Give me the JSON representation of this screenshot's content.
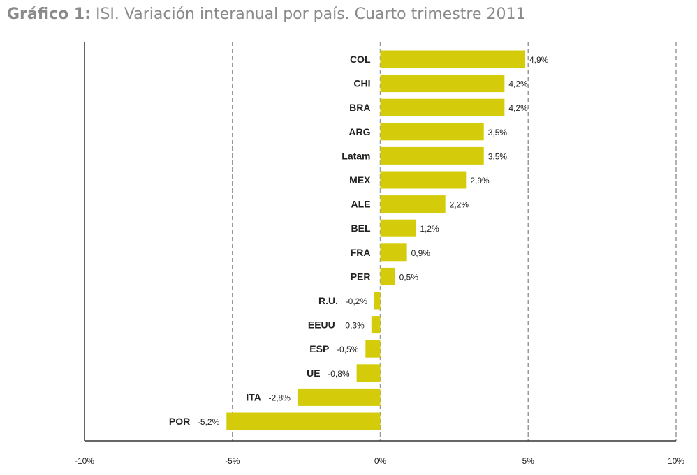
{
  "title": {
    "prefix": "Gráfico 1:",
    "text": " ISI. Variación interanual por país. Cuarto trimestre 2011"
  },
  "colors": {
    "bar": "#d4cc0a",
    "axis": "#333333",
    "grid": "#999999"
  },
  "chart_data": {
    "type": "bar",
    "orientation": "horizontal",
    "categories": [
      "COL",
      "CHI",
      "BRA",
      "ARG",
      "Latam",
      "MEX",
      "ALE",
      "BEL",
      "FRA",
      "PER",
      "R.U.",
      "EEUU",
      "ESP",
      "UE",
      "ITA",
      "POR"
    ],
    "values": [
      4.9,
      4.2,
      4.2,
      3.5,
      3.5,
      2.9,
      2.2,
      1.2,
      0.9,
      0.5,
      -0.2,
      -0.3,
      -0.5,
      -0.8,
      -2.8,
      -5.2
    ],
    "value_labels": [
      "4,9%",
      "4,2%",
      "4,2%",
      "3,5%",
      "3,5%",
      "2,9%",
      "2,2%",
      "1,2%",
      "0,9%",
      "0,5%",
      "-0,2%",
      "-0,3%",
      "-0,5%",
      "-0,8%",
      "-2,8%",
      "-5,2%"
    ],
    "xlim": [
      -10,
      10
    ],
    "xticks": [
      -10,
      -5,
      0,
      5,
      10
    ],
    "xtick_labels": [
      "-10%",
      "-5%",
      "0%",
      "5%",
      "10%"
    ],
    "grid": "vertical dashed at ±5%, 0%, 10%",
    "legend": "none"
  }
}
